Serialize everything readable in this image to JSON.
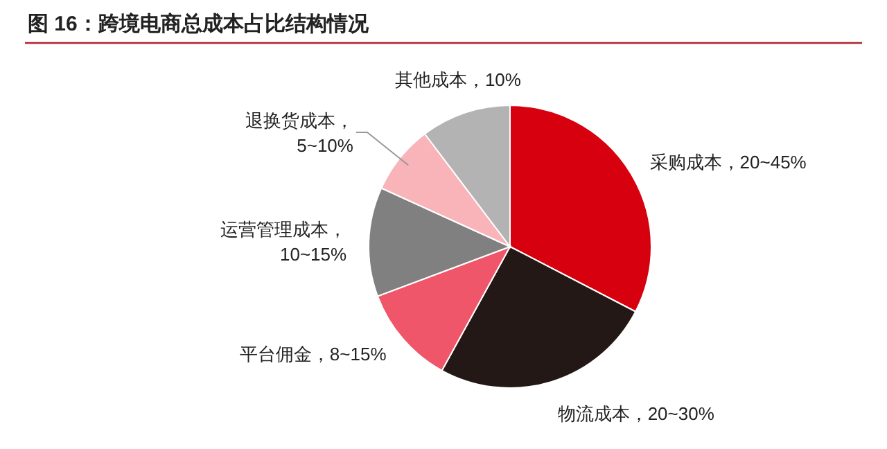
{
  "chart_data": {
    "type": "pie",
    "title": "图 16：跨境电商总成本占比结构情况",
    "categories": [
      "采购成本，20~45%",
      "物流成本，20~30%",
      "平台佣金，8~15%",
      "运营管理成本，10~15%",
      "退换货成本，5~10%",
      "其他成本，10%"
    ],
    "values": [
      32.6,
      25.4,
      11.3,
      12.5,
      7.9,
      10.3
    ],
    "colors": [
      "#d7000f",
      "#231815",
      "#f0566a",
      "#808080",
      "#f8b4b8",
      "#b3b3b3"
    ]
  }
}
